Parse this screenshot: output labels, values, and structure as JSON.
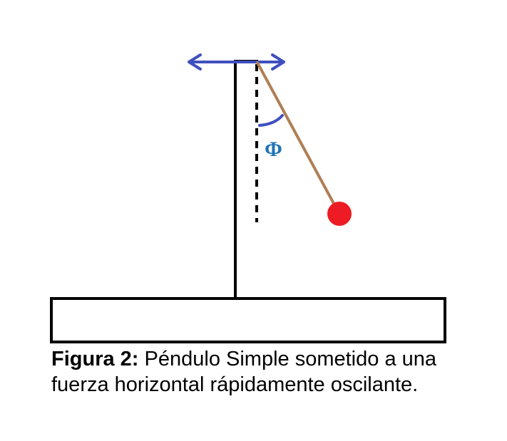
{
  "figure": {
    "angle_symbol": "Φ",
    "caption_label": "Figura 2:",
    "caption_text": " Péndulo Simple sometido a una fuerza horizontal rápidamente oscilante."
  },
  "colors": {
    "structure": "#000000",
    "arrow": "#3f4fbf",
    "rod": "#b07e55",
    "bob": "#ed1c24",
    "angle_arc": "#3f4fbf",
    "angle_label": "#1f73b8"
  },
  "icons": {
    "oscillation_indicator": "double-headed-horizontal-arrow"
  }
}
